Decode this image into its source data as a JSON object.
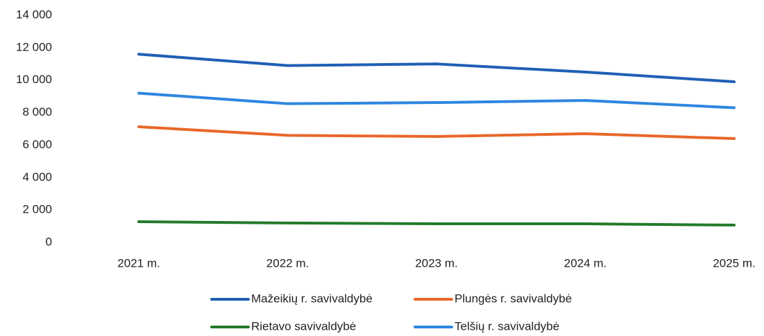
{
  "chart_data": {
    "type": "line",
    "categories": [
      "2021 m.",
      "2022 m.",
      "2023 m.",
      "2024 m.",
      "2025 m."
    ],
    "series": [
      {
        "name": "Mažeikių r. savivaldybė",
        "color": "#1f5fb5",
        "values": [
          11600,
          10900,
          11000,
          10500,
          9900
        ]
      },
      {
        "name": "Plungės r. savivaldybė",
        "color": "#e8672a",
        "values": [
          7130,
          6600,
          6530,
          6700,
          6400
        ]
      },
      {
        "name": "Rietavo savivaldybė",
        "color": "#237a2b",
        "values": [
          1280,
          1200,
          1150,
          1150,
          1070
        ]
      },
      {
        "name": "Telšių r. savivaldybė",
        "color": "#2e86e0",
        "values": [
          9200,
          8550,
          8620,
          8750,
          8300
        ]
      }
    ],
    "ylim": [
      0,
      14000
    ],
    "yticks": [
      0,
      {
        "value": 2000,
        "label": "2 000"
      },
      {
        "value": 4000,
        "label": "4 000"
      },
      {
        "value": 6000,
        "label": "6 000"
      },
      {
        "value": 8000,
        "label": "8 000"
      },
      {
        "value": 10000,
        "label": "10 000"
      },
      {
        "value": 12000,
        "label": "12 000"
      },
      {
        "value": 14000,
        "label": "14 000"
      }
    ],
    "grid": false
  }
}
